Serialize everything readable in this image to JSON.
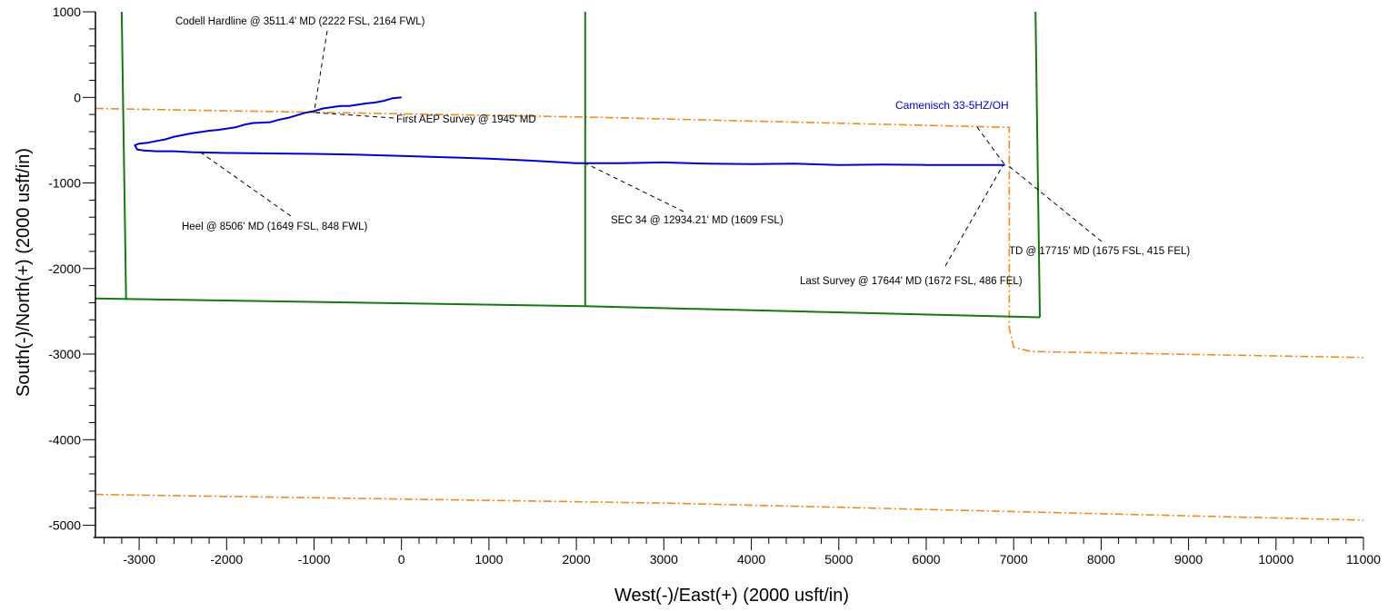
{
  "chart_data": {
    "type": "line",
    "xlabel": "West(-)/East(+)  (2000 usft/in)",
    "ylabel": "South(-)/North(+)  (2000 usft/in)",
    "xlim": [
      -3500,
      11000
    ],
    "ylim": [
      -5100,
      1000
    ],
    "x_ticks": [
      -3000,
      -2000,
      -1000,
      0,
      1000,
      2000,
      3000,
      4000,
      5000,
      6000,
      7000,
      8000,
      9000,
      10000,
      11000
    ],
    "y_ticks": [
      1000,
      0,
      -1000,
      -2000,
      -3000,
      -4000,
      -5000
    ],
    "grid": false,
    "colors": {
      "wellbore": "#0000cc",
      "section_lines": "#127a12",
      "hardlines": "#f08a1c",
      "leader": "#000000"
    },
    "series": [
      {
        "name": "Camenisch  33-5HZ/OH",
        "style": "solid",
        "color": "#0000cc",
        "x": [
          0,
          -100,
          -200,
          -300,
          -400,
          -600,
          -700,
          -800,
          -900,
          -1000,
          -1100,
          -1200,
          -1300,
          -1400,
          -1500,
          -1700,
          -1800,
          -1900,
          -2100,
          -2200,
          -2400,
          -2600,
          -2700,
          -2800,
          -2900,
          -3000,
          -3050,
          -3020,
          -2950,
          -2800,
          -2600,
          -2400,
          -2000,
          -1500,
          -1000,
          -500,
          0,
          500,
          1000,
          1500,
          2000,
          2500,
          3000,
          3500,
          4000,
          4500,
          5000,
          5500,
          6000,
          6500,
          6900
        ],
        "y": [
          0,
          -10,
          -40,
          -60,
          -70,
          -100,
          -100,
          -115,
          -130,
          -160,
          -180,
          -210,
          -240,
          -260,
          -290,
          -300,
          -320,
          -350,
          -380,
          -390,
          -420,
          -460,
          -490,
          -510,
          -530,
          -540,
          -560,
          -610,
          -620,
          -630,
          -630,
          -640,
          -650,
          -655,
          -660,
          -670,
          -685,
          -700,
          -715,
          -740,
          -770,
          -770,
          -760,
          -775,
          -780,
          -775,
          -790,
          -785,
          -790,
          -790,
          -790
        ]
      },
      {
        "name": "",
        "style": "solid",
        "color": "#127a12",
        "segments": [
          {
            "x": [
              -3200,
              -3150
            ],
            "y": [
              1000,
              -2350
            ]
          },
          {
            "x": [
              2100,
              2100
            ],
            "y": [
              1000,
              -2440
            ]
          },
          {
            "x": [
              7250,
              7300
            ],
            "y": [
              1000,
              -2570
            ]
          },
          {
            "x": [
              -3500,
              2100,
              7300
            ],
            "y": [
              -2350,
              -2440,
              -2570
            ]
          }
        ]
      },
      {
        "name": "",
        "style": "dash-dot",
        "color": "#f08a1c",
        "segments": [
          {
            "x": [
              -3500,
              2100,
              6950,
              6950,
              7000,
              7200,
              11000
            ],
            "y": [
              -130,
              -230,
              -350,
              -2700,
              -2920,
              -2970,
              -3040
            ]
          },
          {
            "x": [
              -3500,
              3000,
              11000
            ],
            "y": [
              -4640,
              -4740,
              -4940
            ]
          }
        ]
      }
    ],
    "annotations": [
      {
        "text": "Codell Hardline @ 3511.4' MD (2222 FSL, 2164 FWL)",
        "point": [
          -1000,
          -180
        ]
      },
      {
        "text": "First AEP Survey @ 1945' MD",
        "point": [
          -1100,
          -170
        ]
      },
      {
        "text": "Heel @ 8506' MD (1649 FSL, 848 FWL)",
        "point": [
          -2300,
          -640
        ]
      },
      {
        "text": "SEC 34 @ 12934.21' MD (1609 FSL)",
        "point": [
          2100,
          -770
        ]
      },
      {
        "text": "Last Survey @ 17644' MD (1672 FSL, 486 FEL)",
        "point": [
          6880,
          -790
        ]
      },
      {
        "text": "TD @ 17715' MD (1675 FSL, 415 FEL)",
        "point": [
          6930,
          -790
        ]
      }
    ]
  }
}
